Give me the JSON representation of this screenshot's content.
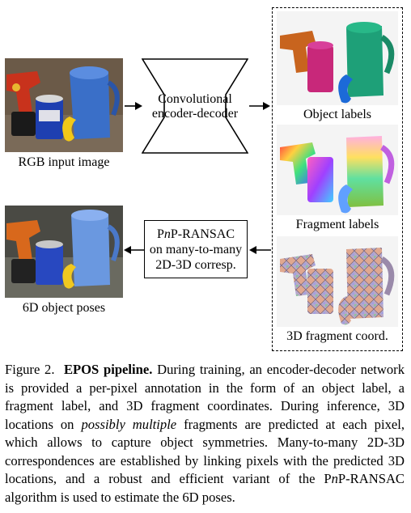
{
  "figure": {
    "rgb_label": "RGB input image",
    "encoder_line1": "Convolutional",
    "encoder_line2": "encoder-decoder",
    "object_labels": "Object labels",
    "fragment_labels": "Fragment labels",
    "coord_label": "3D fragment coord.",
    "pnp_line1_a": "P",
    "pnp_line1_n": "n",
    "pnp_line1_b": "P-RANSAC",
    "pnp_line2": "on many-to-many",
    "pnp_line3": "2D-3D corresp.",
    "poses_label": "6D object poses"
  },
  "caption": {
    "prefix": "Figure 2.",
    "title": "EPOS pipeline.",
    "part1": "During training, an encoder-decoder network is provided a per-pixel annotation in the form of an object label, a fragment label, and 3D fragment coordinates. During inference, 3D locations on",
    "emph": "possibly multiple",
    "part2": "fragments are predicted at each pixel, which allows to capture object symmetries. Many-to-many 2D-3D correspondences are established by linking pixels with the predicted 3D locations, and a robust and efficient variant of the P",
    "part2_n": "n",
    "part3": "P-RANSAC algorithm is used to estimate the 6D poses."
  }
}
